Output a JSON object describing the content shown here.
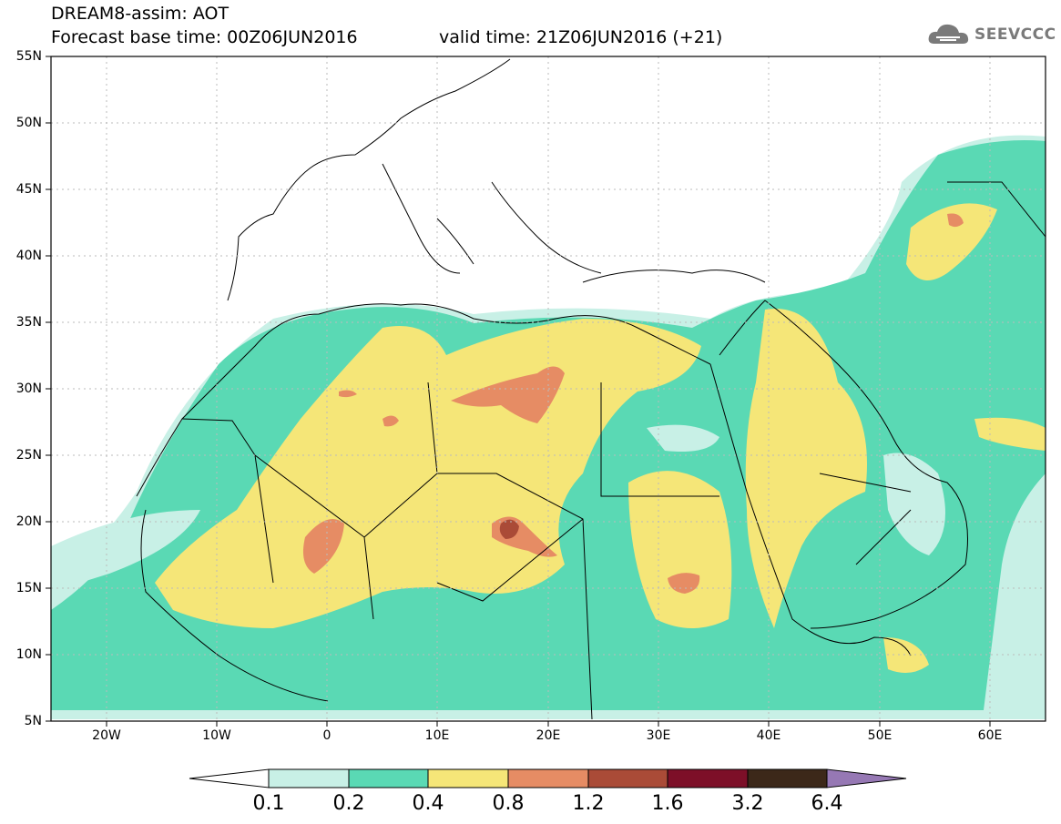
{
  "header": {
    "line1": "DREAM8-assim: AOT",
    "line2": "Forecast base time: 00Z06JUN2016",
    "valid": "valid time: 21Z06JUN2016 (+21)",
    "logo": "SEEVCCC"
  },
  "map": {
    "lat_labels": [
      "55N",
      "50N",
      "45N",
      "40N",
      "35N",
      "30N",
      "25N",
      "20N",
      "15N",
      "10N",
      "5N"
    ],
    "lon_labels": [
      "20W",
      "10W",
      "0",
      "10E",
      "20E",
      "30E",
      "40E",
      "50E",
      "60E"
    ],
    "extent": {
      "lon": [
        -25,
        65
      ],
      "lat": [
        5,
        55
      ]
    }
  },
  "colorbar": {
    "labels": [
      "0.1",
      "0.2",
      "0.4",
      "0.8",
      "1.2",
      "1.6",
      "3.2",
      "6.4"
    ],
    "colors": [
      "#c8f0e6",
      "#5ad9b4",
      "#f5e678",
      "#e68c64",
      "#aa4b37",
      "#7d0f28",
      "#3c2819",
      "#9678b4"
    ]
  }
}
